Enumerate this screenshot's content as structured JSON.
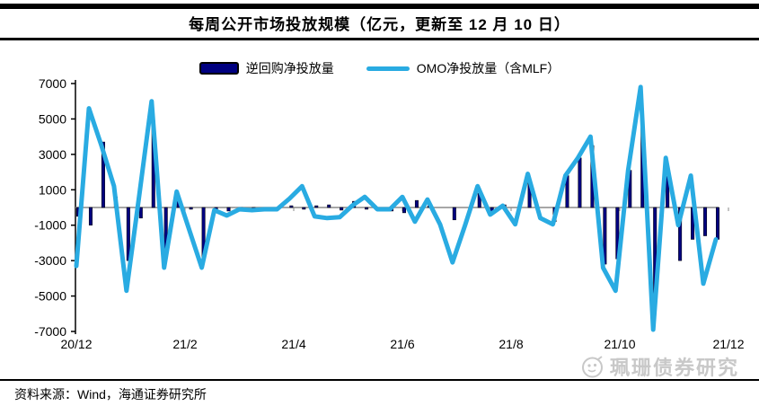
{
  "title": "每周公开市场投放规模（亿元，更新至 12 月 10 日）",
  "legend": [
    {
      "label": "逆回购净投放量",
      "type": "bar"
    },
    {
      "label": "OMO净投放量（含MLF）",
      "type": "line"
    }
  ],
  "footer": {
    "source": "资料来源：Wind，海通证券研究所"
  },
  "watermark": {
    "text": "珮珊债券研究"
  },
  "colors": {
    "bar": "#000080",
    "bar_stroke": "#000000",
    "line": "#29ABE2",
    "axis": "#000000",
    "zero_line": "#8a8a8a",
    "watermark": "#c8c8c8"
  },
  "chart_data": {
    "type": "combo",
    "title": "每周公开市场投放规模（亿元，更新至 12 月 10 日）",
    "frequency": "weekly",
    "x_tick_labels": [
      "20/12",
      "21/2",
      "21/4",
      "21/6",
      "21/8",
      "21/10",
      "21/12"
    ],
    "xlabel": "",
    "ylabel": "亿元",
    "ylim": [
      -7000,
      7000
    ],
    "y_ticks": [
      7000,
      5000,
      3000,
      1000,
      -1000,
      -3000,
      -5000,
      -7000
    ],
    "grid": false,
    "legend_position": "top",
    "series": [
      {
        "name": "逆回购净投放量",
        "type": "bar",
        "values": [
          -500,
          -1000,
          3700,
          600,
          -3000,
          -600,
          4900,
          -2600,
          600,
          -100,
          -2900,
          -100,
          -200,
          -100,
          -100,
          0,
          0,
          100,
          -100,
          100,
          150,
          -150,
          350,
          -100,
          0,
          -200,
          -300,
          400,
          100,
          0,
          -700,
          0,
          800,
          -300,
          150,
          0,
          1400,
          0,
          -800,
          1800,
          2800,
          3500,
          -3200,
          -2900,
          2100,
          4900,
          -5100,
          1750,
          -3000,
          -1800,
          -1600,
          -1800
        ]
      },
      {
        "name": "OMO净投放量（含MLF）",
        "type": "line",
        "values": [
          -3300,
          5600,
          3500,
          1200,
          -4700,
          600,
          6000,
          -3400,
          900,
          -1250,
          -3400,
          -150,
          -450,
          -100,
          -150,
          -100,
          -100,
          500,
          1200,
          -500,
          -600,
          -550,
          100,
          600,
          -100,
          -100,
          600,
          -800,
          450,
          -950,
          -3100,
          -1000,
          1200,
          -400,
          100,
          -950,
          1900,
          -600,
          -950,
          1800,
          2800,
          4000,
          -3400,
          -4700,
          2100,
          6800,
          -6900,
          2800,
          -1000,
          1800,
          -4300,
          -1800
        ]
      }
    ]
  }
}
